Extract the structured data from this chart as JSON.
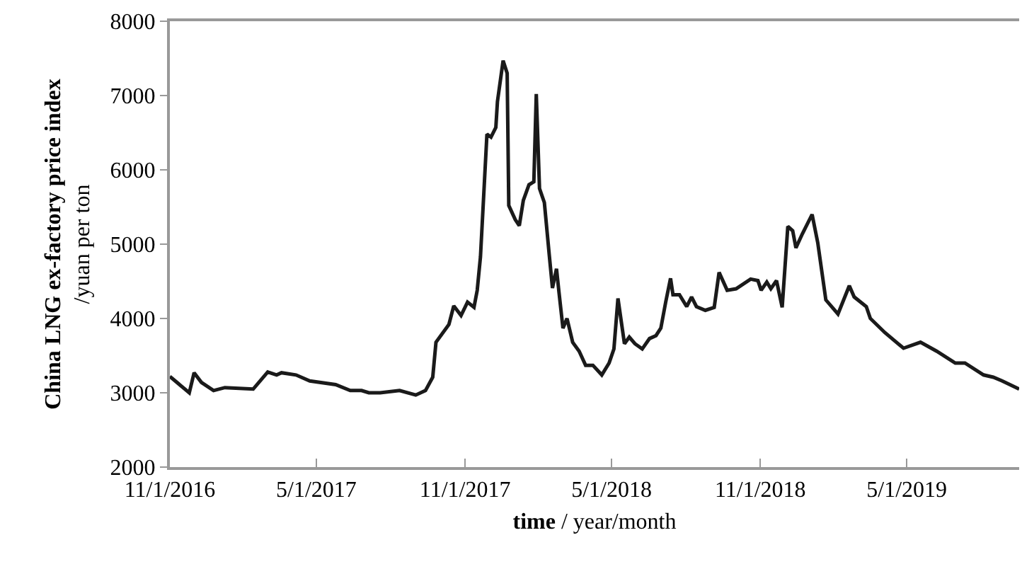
{
  "chart_data": {
    "type": "line",
    "xlabel": "time / year/month",
    "ylabel": "China LNG ex-factory price index\n/yuan per ton",
    "x": [
      "2016-11-01",
      "2016-11-25",
      "2016-12-01",
      "2016-12-10",
      "2016-12-25",
      "2017-01-08",
      "2017-02-12",
      "2017-03-02",
      "2017-03-13",
      "2017-03-19",
      "2017-04-06",
      "2017-04-23",
      "2017-05-25",
      "2017-06-12",
      "2017-06-26",
      "2017-07-05",
      "2017-07-19",
      "2017-08-12",
      "2017-09-01",
      "2017-09-13",
      "2017-09-22",
      "2017-09-26",
      "2017-10-12",
      "2017-10-18",
      "2017-10-27",
      "2017-11-04",
      "2017-11-12",
      "2017-11-16",
      "2017-11-20",
      "2017-11-28",
      "2017-12-03",
      "2017-12-09",
      "2017-12-11",
      "2017-12-18",
      "2017-12-23",
      "2017-12-25",
      "2018-01-02",
      "2018-01-07",
      "2018-01-12",
      "2018-01-19",
      "2018-01-25",
      "2018-01-28",
      "2018-02-01",
      "2018-02-07",
      "2018-02-13",
      "2018-02-17",
      "2018-02-22",
      "2018-02-25",
      "2018-03-02",
      "2018-03-07",
      "2018-03-14",
      "2018-03-22",
      "2018-03-30",
      "2018-04-08",
      "2018-04-19",
      "2018-04-28",
      "2018-05-04",
      "2018-05-09",
      "2018-05-17",
      "2018-05-23",
      "2018-05-30",
      "2018-06-08",
      "2018-06-17",
      "2018-06-25",
      "2018-07-01",
      "2018-07-07",
      "2018-07-13",
      "2018-07-16",
      "2018-07-24",
      "2018-08-02",
      "2018-08-08",
      "2018-08-14",
      "2018-08-25",
      "2018-09-05",
      "2018-09-11",
      "2018-09-21",
      "2018-10-02",
      "2018-10-20",
      "2018-10-29",
      "2018-11-02",
      "2018-11-09",
      "2018-11-14",
      "2018-11-21",
      "2018-11-28",
      "2018-12-05",
      "2018-12-11",
      "2018-12-15",
      "2018-12-23",
      "2019-01-04",
      "2019-01-11",
      "2019-01-21",
      "2019-02-05",
      "2019-02-19",
      "2019-02-25",
      "2019-03-12",
      "2019-03-17",
      "2019-04-04",
      "2019-04-27",
      "2019-05-18",
      "2019-06-07",
      "2019-06-30",
      "2019-07-12",
      "2019-08-04",
      "2019-08-16",
      "2019-08-27",
      "2019-09-17"
    ],
    "series": [
      {
        "color": "#1a1a1a",
        "values": [
          3220,
          3000,
          3270,
          3140,
          3030,
          3070,
          3050,
          3280,
          3240,
          3270,
          3240,
          3160,
          3110,
          3030,
          3030,
          3000,
          3000,
          3030,
          2970,
          3030,
          3210,
          3680,
          3920,
          4170,
          4040,
          4220,
          4150,
          4380,
          4830,
          6480,
          6440,
          6570,
          6920,
          7470,
          7300,
          5520,
          5330,
          5250,
          5590,
          5800,
          5840,
          7020,
          5750,
          5560,
          4860,
          4410,
          4670,
          4360,
          3870,
          4000,
          3680,
          3560,
          3370,
          3370,
          3240,
          3400,
          3590,
          4270,
          3660,
          3750,
          3660,
          3590,
          3730,
          3770,
          3870,
          4220,
          4540,
          4320,
          4320,
          4160,
          4290,
          4160,
          4110,
          4150,
          4620,
          4380,
          4400,
          4530,
          4510,
          4380,
          4490,
          4400,
          4510,
          4150,
          5240,
          5180,
          4950,
          5140,
          5400,
          5020,
          4250,
          4060,
          4440,
          4290,
          4160,
          4000,
          3810,
          3600,
          3680,
          3560,
          3400,
          3400,
          3240,
          3210,
          3160,
          3050
        ]
      }
    ],
    "xlim": [
      "2016-11-01",
      "2019-09-17"
    ],
    "xticks": [
      {
        "value": "2016-11-01",
        "label": "11/1/2016"
      },
      {
        "value": "2017-05-01",
        "label": "5/1/2017"
      },
      {
        "value": "2017-11-01",
        "label": "11/1/2017"
      },
      {
        "value": "2018-05-01",
        "label": "5/1/2018"
      },
      {
        "value": "2018-11-01",
        "label": "11/1/2018"
      },
      {
        "value": "2019-05-01",
        "label": "5/1/2019"
      }
    ],
    "ylim": [
      2000,
      8000
    ],
    "yticks": [
      2000,
      3000,
      4000,
      5000,
      6000,
      7000,
      8000
    ],
    "marker": "none",
    "line_style": "solid"
  }
}
